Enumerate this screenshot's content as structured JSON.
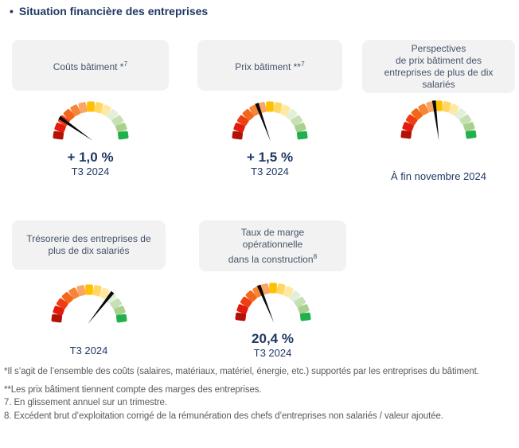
{
  "title": "Situation financière des entreprises",
  "title_bullet": "•",
  "colors": {
    "navy": "#1F3864",
    "header_text": "#44546A",
    "card_bg": "#F2F2F2",
    "footnote_text": "#595959"
  },
  "gauge": {
    "needle_color": "#0A0A0A",
    "segment_colors": [
      "#B31307",
      "#E21C0B",
      "#EF3E14",
      "#F4661A",
      "#F68635",
      "#F9A668",
      "#FFC000",
      "#FFD761",
      "#FFE9A0",
      "#E2EFDA",
      "#C6E0B4",
      "#A9D18E",
      "#21B14C"
    ]
  },
  "panels": [
    {
      "id": "couts-batiment",
      "header_lines": [
        "Coûts bâtiment *"
      ],
      "header_sup": "7",
      "needle_angle_deg": 145,
      "value": "+ 1,0 %",
      "caption": "T3 2024"
    },
    {
      "id": "prix-batiment",
      "header_lines": [
        "Prix bâtiment **"
      ],
      "header_sup": "7",
      "needle_angle_deg": 110,
      "value": "+ 1,5 %",
      "caption": "T3 2024"
    },
    {
      "id": "perspectives-prix-batiment",
      "header_lines": [
        "Perspectives",
        "de prix bâtiment des",
        "entreprises de plus de dix",
        "salariés"
      ],
      "header_sup": "",
      "needle_angle_deg": 97,
      "value": "",
      "caption": "À fin novembre 2024"
    },
    {
      "id": "tresorerie",
      "header_lines": [
        "Trésorerie des entreprises de",
        "plus de dix salariés"
      ],
      "header_sup": "",
      "needle_angle_deg": 52,
      "value": "",
      "caption": "T3 2024"
    },
    {
      "id": "taux-marge-operationnelle",
      "header_lines": [
        "Taux de marge",
        "opérationnelle",
        "dans la construction"
      ],
      "header_sup": "8",
      "needle_angle_deg": 112,
      "value": "20,4 %",
      "caption": "T3 2024"
    }
  ],
  "footnotes": [
    "*Il s’agit de l’ensemble des coûts (salaires, matériaux, matériel, énergie, etc.) supportés par les entreprises du bâtiment.",
    "**Les prix bâtiment tiennent compte des marges des entreprises.",
    "7. En glissement annuel sur un trimestre.",
    "8. Excédent brut d’exploitation corrigé de la rémunération des chefs d’entreprises non salariés / valeur ajoutée."
  ],
  "chart_data": [
    {
      "type": "gauge",
      "title": "Coûts bâtiment *7",
      "value_label": "+ 1,0 %",
      "period": "T3 2024",
      "needle_angle_deg": 145,
      "needle_zone": "red (unfavorable, left side)",
      "scale": "semicircular 180° arc, 13 segments from dark red (left) to dark green (right)"
    },
    {
      "type": "gauge",
      "title": "Prix bâtiment **7",
      "value_label": "+ 1,5 %",
      "period": "T3 2024",
      "needle_angle_deg": 110,
      "needle_zone": "amber (center-left)",
      "scale": "semicircular 180° arc, 13 segments from dark red (left) to dark green (right)"
    },
    {
      "type": "gauge",
      "title": "Perspectives de prix bâtiment des entreprises de plus de dix salariés",
      "value_label": "",
      "period": "À fin novembre 2024",
      "needle_angle_deg": 97,
      "needle_zone": "center (amber/yellow)",
      "scale": "semicircular 180° arc, 13 segments from dark red (left) to dark green (right)"
    },
    {
      "type": "gauge",
      "title": "Trésorerie des entreprises de plus de dix salariés",
      "value_label": "",
      "period": "T3 2024",
      "needle_angle_deg": 52,
      "needle_zone": "light green (favorable, right side)",
      "scale": "semicircular 180° arc, 13 segments from dark red (left) to dark green (right)"
    },
    {
      "type": "gauge",
      "title": "Taux de marge opérationnelle dans la construction 8",
      "value_label": "20,4 %",
      "period": "T3 2024",
      "needle_angle_deg": 112,
      "needle_zone": "amber (center-left)",
      "scale": "semicircular 180° arc, 13 segments from dark red (left) to dark green (right)"
    }
  ]
}
